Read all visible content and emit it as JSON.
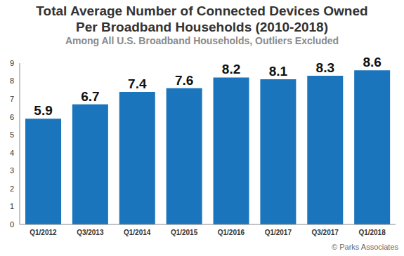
{
  "chart_data": {
    "type": "bar",
    "title": "Total Average Number of Connected Devices Owned Per Broadband Households (2010-2018)",
    "subtitle": "Among All U.S. Broadband Households, Outliers Excluded",
    "source": "© Parks Associates",
    "categories": [
      "Q1/2012",
      "Q3/2013",
      "Q1/2014",
      "Q1/2015",
      "Q1/2016",
      "Q1/2017",
      "Q3/2017",
      "Q1/2018"
    ],
    "values": [
      5.9,
      6.7,
      7.4,
      7.6,
      8.2,
      8.1,
      8.3,
      8.6
    ],
    "color": "#1b75bc",
    "ylim": [
      0,
      9
    ],
    "yticks": [
      0,
      1,
      2,
      3,
      4,
      5,
      6,
      7,
      8,
      9
    ],
    "grid": false,
    "data_labels": true
  }
}
